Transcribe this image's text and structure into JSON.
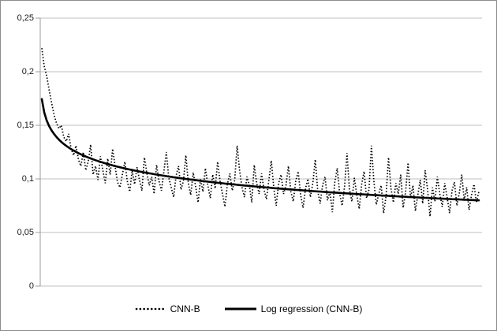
{
  "chart_data": {
    "type": "line",
    "title": "",
    "xlabel": "",
    "ylabel": "",
    "ylim": [
      0,
      0.25
    ],
    "x_range": [
      1,
      180
    ],
    "x_axis_labels_visible": false,
    "grid": "horizontal",
    "legend_position": "bottom-center",
    "colors": {
      "series": "#000000",
      "gridline": "#bfbfbf",
      "axis": "#9b9b9b",
      "tick_text": "#1a1a1a"
    },
    "y_ticks": [
      {
        "value": 0,
        "label": "0"
      },
      {
        "value": 0.05,
        "label": "0,05"
      },
      {
        "value": 0.1,
        "label": "0,1"
      },
      {
        "value": 0.15,
        "label": "0,15"
      },
      {
        "value": 0.2,
        "label": "0,2"
      },
      {
        "value": 0.25,
        "label": "0,25"
      }
    ],
    "series": [
      {
        "name": "CNN-B",
        "style": "dotted",
        "color": "#000000",
        "values": [
          0.222,
          0.205,
          0.196,
          0.183,
          0.171,
          0.16,
          0.152,
          0.147,
          0.15,
          0.139,
          0.135,
          0.142,
          0.128,
          0.122,
          0.131,
          0.118,
          0.112,
          0.125,
          0.108,
          0.116,
          0.132,
          0.104,
          0.112,
          0.099,
          0.121,
          0.108,
          0.096,
          0.119,
          0.104,
          0.128,
          0.112,
          0.097,
          0.092,
          0.104,
          0.116,
          0.098,
          0.088,
          0.108,
          0.095,
          0.111,
          0.099,
          0.089,
          0.12,
          0.106,
          0.094,
          0.102,
          0.086,
          0.113,
          0.098,
          0.089,
          0.107,
          0.125,
          0.101,
          0.092,
          0.083,
          0.103,
          0.112,
          0.09,
          0.098,
          0.122,
          0.096,
          0.085,
          0.106,
          0.093,
          0.078,
          0.1,
          0.088,
          0.11,
          0.094,
          0.082,
          0.104,
          0.091,
          0.116,
          0.098,
          0.086,
          0.074,
          0.095,
          0.105,
          0.089,
          0.099,
          0.131,
          0.108,
          0.092,
          0.083,
          0.102,
          0.094,
          0.078,
          0.113,
          0.096,
          0.086,
          0.105,
          0.09,
          0.081,
          0.099,
          0.117,
          0.092,
          0.075,
          0.096,
          0.104,
          0.086,
          0.094,
          0.112,
          0.088,
          0.079,
          0.098,
          0.107,
          0.085,
          0.073,
          0.091,
          0.1,
          0.083,
          0.096,
          0.118,
          0.089,
          0.077,
          0.094,
          0.102,
          0.08,
          0.088,
          0.069,
          0.097,
          0.11,
          0.086,
          0.075,
          0.093,
          0.124,
          0.09,
          0.079,
          0.101,
          0.085,
          0.072,
          0.095,
          0.107,
          0.082,
          0.09,
          0.131,
          0.098,
          0.076,
          0.086,
          0.094,
          0.068,
          0.084,
          0.12,
          0.091,
          0.078,
          0.096,
          0.086,
          0.104,
          0.073,
          0.088,
          0.115,
          0.082,
          0.094,
          0.07,
          0.085,
          0.099,
          0.077,
          0.108,
          0.09,
          0.065,
          0.092,
          0.079,
          0.102,
          0.086,
          0.074,
          0.096,
          0.083,
          0.068,
          0.089,
          0.097,
          0.075,
          0.087,
          0.104,
          0.08,
          0.092,
          0.071,
          0.085,
          0.095,
          0.078,
          0.088
        ]
      },
      {
        "name": "Log regression (CNN-B)",
        "style": "solid",
        "color": "#000000",
        "fit": "logarithmic",
        "formula": "y = 0.1745 - 0.0182*ln(x)",
        "a": 0.1745,
        "b": 0.0182
      }
    ]
  }
}
